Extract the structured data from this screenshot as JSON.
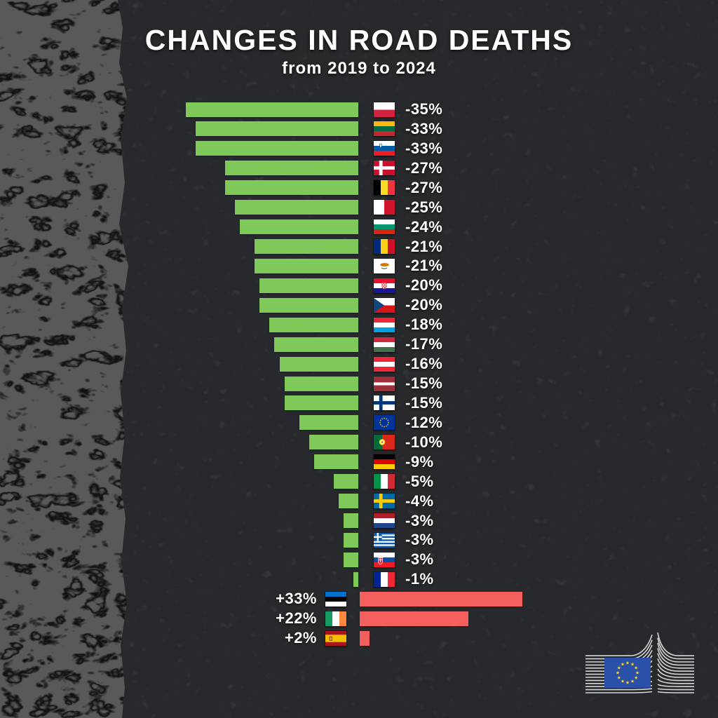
{
  "chart_data": {
    "type": "bar",
    "orientation": "horizontal-diverging",
    "title": "CHANGES IN ROAD DEATHS",
    "subtitle": "from 2019 to 2024",
    "unit": "%",
    "value_range": [
      -35,
      33
    ],
    "decrease_color": "#7fc95a",
    "increase_color": "#f5605e",
    "entries": [
      {
        "country": "Poland",
        "value": -35,
        "label": "-35%"
      },
      {
        "country": "Lithuania",
        "value": -33,
        "label": "-33%"
      },
      {
        "country": "Slovenia",
        "value": -33,
        "label": "-33%"
      },
      {
        "country": "Denmark",
        "value": -27,
        "label": "-27%"
      },
      {
        "country": "Belgium",
        "value": -27,
        "label": "-27%"
      },
      {
        "country": "Malta",
        "value": -25,
        "label": "-25%"
      },
      {
        "country": "Bulgaria",
        "value": -24,
        "label": "-24%"
      },
      {
        "country": "Romania",
        "value": -21,
        "label": "-21%"
      },
      {
        "country": "Cyprus",
        "value": -21,
        "label": "-21%"
      },
      {
        "country": "Croatia",
        "value": -20,
        "label": "-20%"
      },
      {
        "country": "Czechia",
        "value": -20,
        "label": "-20%"
      },
      {
        "country": "Luxembourg",
        "value": -18,
        "label": "-18%"
      },
      {
        "country": "Hungary",
        "value": -17,
        "label": "-17%"
      },
      {
        "country": "Austria",
        "value": -16,
        "label": "-16%"
      },
      {
        "country": "Latvia",
        "value": -15,
        "label": "-15%"
      },
      {
        "country": "Finland",
        "value": -15,
        "label": "-15%"
      },
      {
        "country": "European Union",
        "value": -12,
        "label": "-12%"
      },
      {
        "country": "Portugal",
        "value": -10,
        "label": "-10%"
      },
      {
        "country": "Germany",
        "value": -9,
        "label": "-9%"
      },
      {
        "country": "Italy",
        "value": -5,
        "label": "-5%"
      },
      {
        "country": "Sweden",
        "value": -4,
        "label": "-4%"
      },
      {
        "country": "Netherlands",
        "value": -3,
        "label": "-3%"
      },
      {
        "country": "Greece",
        "value": -3,
        "label": "-3%"
      },
      {
        "country": "Slovakia",
        "value": -3,
        "label": "-3%"
      },
      {
        "country": "France",
        "value": -1,
        "label": "-1%"
      },
      {
        "country": "Estonia",
        "value": 33,
        "label": "+33%"
      },
      {
        "country": "Ireland",
        "value": 22,
        "label": "+22%"
      },
      {
        "country": "Spain",
        "value": 2,
        "label": "+2%"
      }
    ]
  },
  "flags": {
    "Poland": {
      "type": "h",
      "colors": [
        "#ffffff",
        "#d4213d"
      ]
    },
    "Lithuania": {
      "type": "h",
      "colors": [
        "#fdb913",
        "#006a44",
        "#c1272d"
      ]
    },
    "Slovenia": {
      "type": "h",
      "colors": [
        "#ffffff",
        "#005da4",
        "#ed1c24"
      ],
      "emblem": "slovenia"
    },
    "Denmark": {
      "type": "nordic",
      "bg": "#c8102e",
      "cross": "#ffffff"
    },
    "Belgium": {
      "type": "v",
      "colors": [
        "#000000",
        "#fdda24",
        "#ef3340"
      ]
    },
    "Malta": {
      "type": "v",
      "colors": [
        "#ffffff",
        "#cf142b"
      ]
    },
    "Bulgaria": {
      "type": "h",
      "colors": [
        "#ffffff",
        "#00966e",
        "#d62612"
      ]
    },
    "Romania": {
      "type": "v",
      "colors": [
        "#002b7f",
        "#fcd116",
        "#ce1126"
      ]
    },
    "Cyprus": {
      "type": "cyprus",
      "bg": "#ffffff",
      "island": "#d57800",
      "branches": "#4f7942"
    },
    "Croatia": {
      "type": "h",
      "colors": [
        "#e8112d",
        "#ffffff",
        "#171796"
      ],
      "emblem": "croatia"
    },
    "Czechia": {
      "type": "czech",
      "white": "#ffffff",
      "red": "#d7141a",
      "blue": "#11457e"
    },
    "Luxembourg": {
      "type": "h",
      "colors": [
        "#ed2939",
        "#ffffff",
        "#00a1de"
      ]
    },
    "Hungary": {
      "type": "h",
      "colors": [
        "#cd2a3e",
        "#ffffff",
        "#436f4d"
      ]
    },
    "Austria": {
      "type": "h",
      "colors": [
        "#ed2939",
        "#ffffff",
        "#ed2939"
      ]
    },
    "Latvia": {
      "type": "h",
      "colors": [
        "#9e3039",
        "#ffffff",
        "#9e3039"
      ],
      "weights": [
        2,
        1,
        2
      ]
    },
    "Finland": {
      "type": "nordic",
      "bg": "#ffffff",
      "cross": "#003580"
    },
    "European Union": {
      "type": "eu",
      "bg": "#003399",
      "stars": "#ffcc00"
    },
    "Portugal": {
      "type": "portugal",
      "green": "#046a38",
      "red": "#da291c",
      "ring": "#ffe600"
    },
    "Germany": {
      "type": "h",
      "colors": [
        "#000000",
        "#dd0000",
        "#ffce00"
      ]
    },
    "Italy": {
      "type": "v",
      "colors": [
        "#009246",
        "#ffffff",
        "#ce2b37"
      ]
    },
    "Sweden": {
      "type": "nordic",
      "bg": "#006aa7",
      "cross": "#fecc02"
    },
    "Netherlands": {
      "type": "h",
      "colors": [
        "#ae1c28",
        "#ffffff",
        "#21468b"
      ]
    },
    "Greece": {
      "type": "greece",
      "blue": "#0d5eaf",
      "white": "#ffffff"
    },
    "Slovakia": {
      "type": "h",
      "colors": [
        "#ffffff",
        "#0b4ea2",
        "#ee1c25"
      ],
      "emblem": "slovakia"
    },
    "France": {
      "type": "v",
      "colors": [
        "#002395",
        "#ffffff",
        "#ed2939"
      ]
    },
    "Estonia": {
      "type": "h",
      "colors": [
        "#0072ce",
        "#000000",
        "#ffffff"
      ]
    },
    "Ireland": {
      "type": "v",
      "colors": [
        "#169b62",
        "#ffffff",
        "#ff883e"
      ]
    },
    "Spain": {
      "type": "spain",
      "red": "#aa151b",
      "yellow": "#f1bf00"
    }
  },
  "colors": {
    "background": "#27292c",
    "road_shoulder": "#59595a",
    "text": "#ffffff"
  },
  "logo": {
    "organization": "European Commission",
    "flag_bg": "#2a50a8",
    "star_color": "#ffd617",
    "line_color": "#e8e8e8"
  }
}
